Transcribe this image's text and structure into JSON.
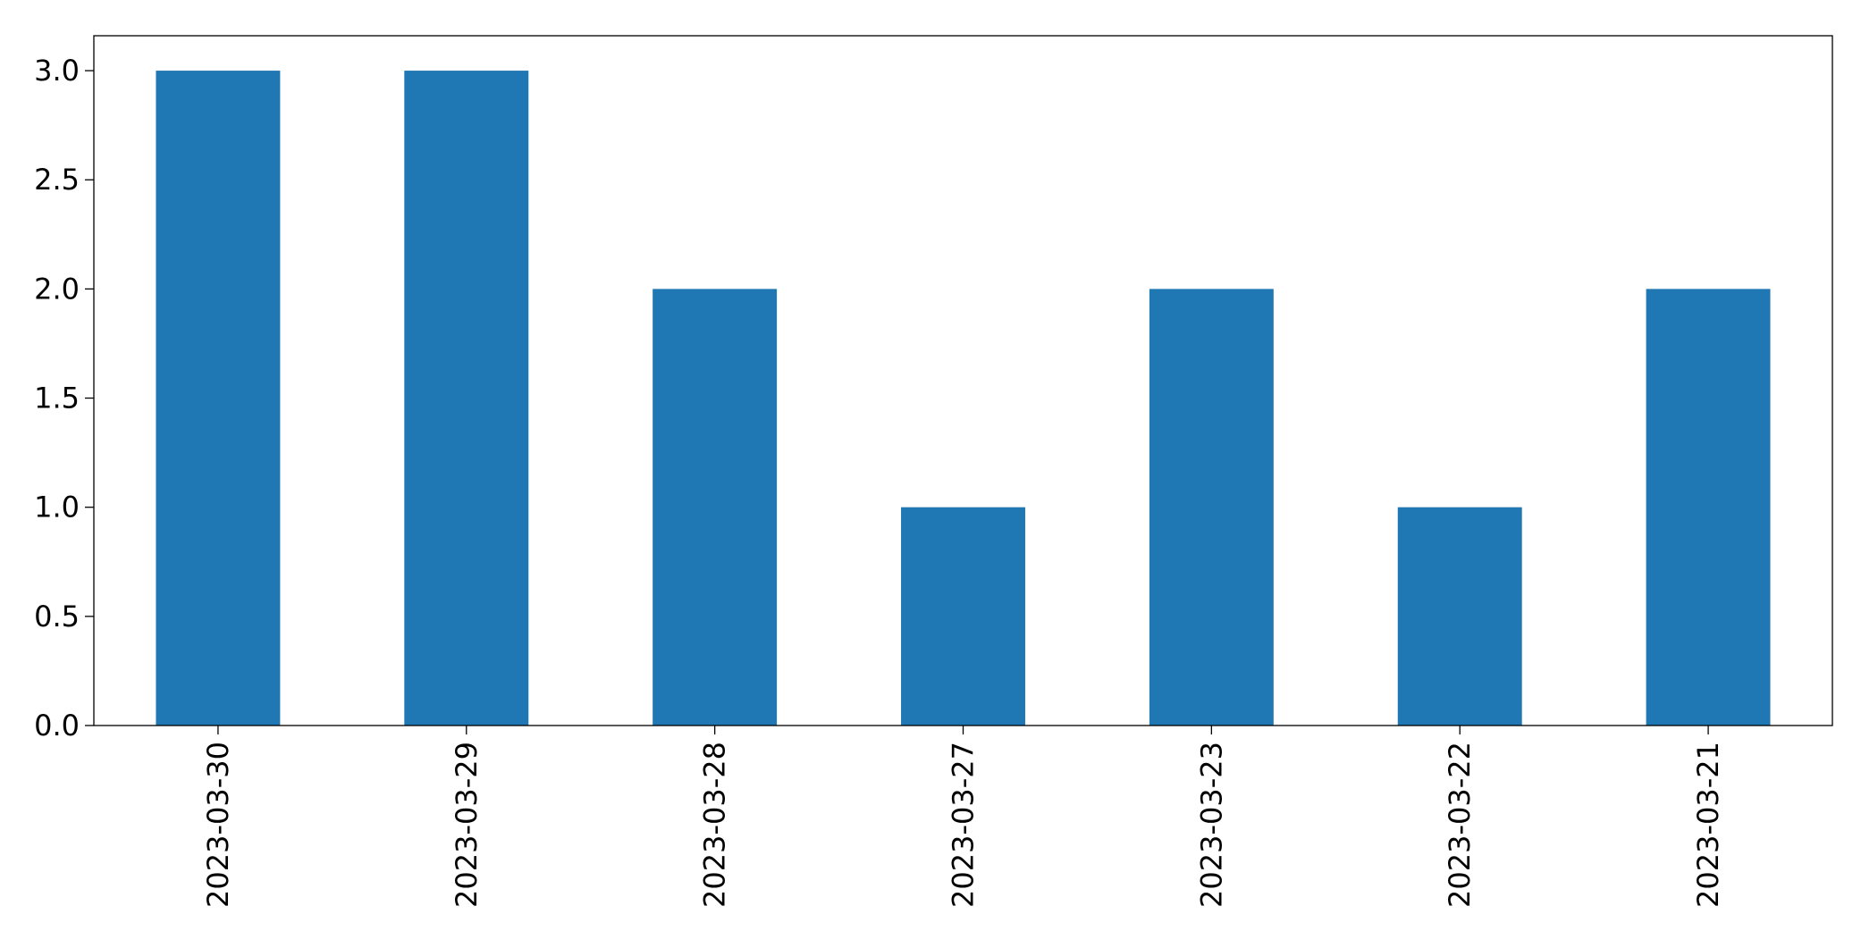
{
  "chart_data": {
    "type": "bar",
    "categories": [
      "2023-03-30",
      "2023-03-29",
      "2023-03-28",
      "2023-03-27",
      "2023-03-23",
      "2023-03-22",
      "2023-03-21"
    ],
    "values": [
      3,
      3,
      2,
      1,
      2,
      1,
      2
    ],
    "ylim": [
      0,
      3.16
    ],
    "yticks": [
      "0.0",
      "0.5",
      "1.0",
      "1.5",
      "2.0",
      "2.5",
      "3.0"
    ],
    "title": "",
    "xlabel": "",
    "ylabel": "",
    "bar_color": "#1f77b4",
    "grid": false,
    "legend": false
  }
}
